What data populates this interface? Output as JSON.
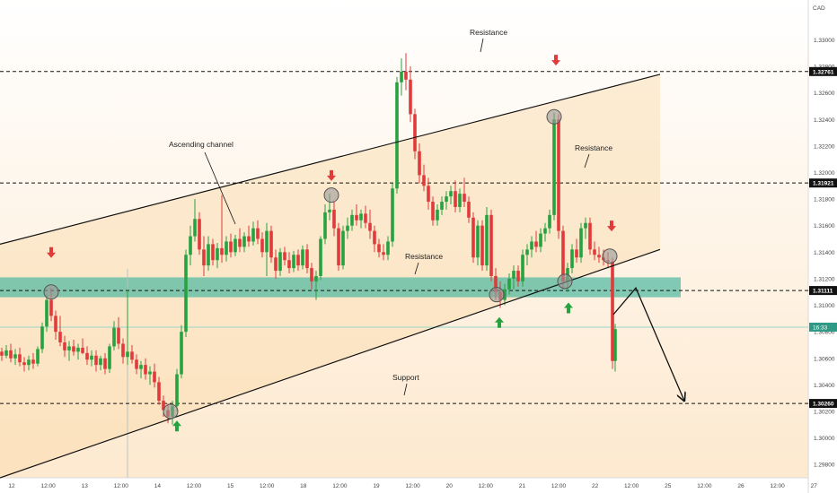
{
  "chart_data": {
    "type": "candlestick",
    "currency": "CAD",
    "x_ticks": [
      "12",
      "12:00",
      "13",
      "12:00",
      "14",
      "12:00",
      "15",
      "12:00",
      "18",
      "12:00",
      "19",
      "12:00",
      "20",
      "12:00",
      "21",
      "12:00",
      "22",
      "12:00",
      "25",
      "12:00",
      "26",
      "12:00",
      "27"
    ],
    "y_ticks": [
      "1.33000",
      "1.32800",
      "1.32600",
      "1.32400",
      "1.32200",
      "1.32000",
      "1.31800",
      "1.31600",
      "1.31400",
      "1.31200",
      "1.31000",
      "1.30800",
      "1.30600",
      "1.30400",
      "1.30200",
      "1.30000",
      "1.29800"
    ],
    "ylim": [
      1.297,
      1.333
    ],
    "levels": [
      {
        "label": "Resistance",
        "price": 1.32761,
        "price_label": "1.32761"
      },
      {
        "label": "Resistance",
        "price": 1.31921,
        "price_label": "1.31921"
      },
      {
        "label": "Resistance",
        "price": 1.31111,
        "price_label": "1.31111"
      },
      {
        "label": "Support",
        "price": 1.3026,
        "price_label": "1.30260"
      }
    ],
    "current_price": {
      "price": 1.30835,
      "label": "16:33"
    },
    "resistance_zone": {
      "low": 1.3106,
      "high": 1.3121
    },
    "channel": {
      "label": "Ascending channel",
      "upper": [
        {
          "x": 0,
          "y": 1.3146
        },
        {
          "x": 735,
          "y": 1.3274
        }
      ],
      "lower": [
        {
          "x": 0,
          "y": 1.297
        },
        {
          "x": 735,
          "y": 1.3142
        }
      ]
    },
    "annotations": [
      "Resistance",
      "Ascending channel",
      "Resistance",
      "Resistance",
      "Support"
    ],
    "down_arrows": [
      {
        "x": 57,
        "y": 1.3137
      },
      {
        "x": 369,
        "y": 1.3195
      },
      {
        "x": 619,
        "y": 1.3282
      },
      {
        "x": 681,
        "y": 1.3157
      }
    ],
    "up_arrows": [
      {
        "x": 197,
        "y": 1.3009
      },
      {
        "x": 556,
        "y": 1.3087
      },
      {
        "x": 633,
        "y": 1.3098
      }
    ],
    "touch_points": [
      {
        "x": 57,
        "y": 1.311
      },
      {
        "x": 190,
        "y": 1.302
      },
      {
        "x": 369,
        "y": 1.3183
      },
      {
        "x": 553,
        "y": 1.3108
      },
      {
        "x": 617,
        "y": 1.3242
      },
      {
        "x": 629,
        "y": 1.3118
      },
      {
        "x": 679,
        "y": 1.3137
      }
    ],
    "projection": [
      {
        "x": 683,
        "y": 1.3093
      },
      {
        "x": 708,
        "y": 1.3113
      },
      {
        "x": 762,
        "y": 1.3028
      }
    ],
    "candles": [
      {
        "x": 2,
        "o": 1.3065,
        "h": 1.3068,
        "l": 1.3058,
        "c": 1.3062
      },
      {
        "x": 7,
        "o": 1.3062,
        "h": 1.307,
        "l": 1.306,
        "c": 1.3066
      },
      {
        "x": 12,
        "o": 1.3066,
        "h": 1.3071,
        "l": 1.3057,
        "c": 1.306
      },
      {
        "x": 17,
        "o": 1.306,
        "h": 1.3067,
        "l": 1.3055,
        "c": 1.3063
      },
      {
        "x": 22,
        "o": 1.3063,
        "h": 1.3068,
        "l": 1.3054,
        "c": 1.3057
      },
      {
        "x": 27,
        "o": 1.3057,
        "h": 1.3061,
        "l": 1.305,
        "c": 1.3055
      },
      {
        "x": 32,
        "o": 1.3055,
        "h": 1.3062,
        "l": 1.3051,
        "c": 1.3059
      },
      {
        "x": 37,
        "o": 1.3059,
        "h": 1.3064,
        "l": 1.3052,
        "c": 1.3056
      },
      {
        "x": 42,
        "o": 1.3056,
        "h": 1.3069,
        "l": 1.3054,
        "c": 1.3067
      },
      {
        "x": 47,
        "o": 1.3067,
        "h": 1.3087,
        "l": 1.3064,
        "c": 1.3084
      },
      {
        "x": 52,
        "o": 1.3084,
        "h": 1.3108,
        "l": 1.308,
        "c": 1.3104
      },
      {
        "x": 57,
        "o": 1.3104,
        "h": 1.3113,
        "l": 1.3088,
        "c": 1.3092
      },
      {
        "x": 62,
        "o": 1.3092,
        "h": 1.3096,
        "l": 1.3074,
        "c": 1.308
      },
      {
        "x": 67,
        "o": 1.308,
        "h": 1.3092,
        "l": 1.3069,
        "c": 1.3072
      },
      {
        "x": 72,
        "o": 1.3072,
        "h": 1.3077,
        "l": 1.3061,
        "c": 1.3066
      },
      {
        "x": 77,
        "o": 1.3066,
        "h": 1.3073,
        "l": 1.3058,
        "c": 1.3069
      },
      {
        "x": 82,
        "o": 1.3069,
        "h": 1.3074,
        "l": 1.3062,
        "c": 1.3065
      },
      {
        "x": 87,
        "o": 1.3065,
        "h": 1.3071,
        "l": 1.3059,
        "c": 1.3068
      },
      {
        "x": 92,
        "o": 1.3068,
        "h": 1.3075,
        "l": 1.3063,
        "c": 1.3064
      },
      {
        "x": 97,
        "o": 1.3064,
        "h": 1.3069,
        "l": 1.3055,
        "c": 1.3059
      },
      {
        "x": 102,
        "o": 1.3059,
        "h": 1.3066,
        "l": 1.3054,
        "c": 1.3062
      },
      {
        "x": 107,
        "o": 1.3062,
        "h": 1.3066,
        "l": 1.305,
        "c": 1.3055
      },
      {
        "x": 112,
        "o": 1.3055,
        "h": 1.3062,
        "l": 1.3051,
        "c": 1.306
      },
      {
        "x": 117,
        "o": 1.306,
        "h": 1.3064,
        "l": 1.3048,
        "c": 1.3052
      },
      {
        "x": 122,
        "o": 1.3052,
        "h": 1.3071,
        "l": 1.3049,
        "c": 1.3069
      },
      {
        "x": 127,
        "o": 1.3069,
        "h": 1.3088,
        "l": 1.3066,
        "c": 1.3083
      },
      {
        "x": 132,
        "o": 1.3083,
        "h": 1.3091,
        "l": 1.3067,
        "c": 1.3071
      },
      {
        "x": 137,
        "o": 1.3071,
        "h": 1.3075,
        "l": 1.3056,
        "c": 1.3061
      },
      {
        "x": 142,
        "o": 1.3061,
        "h": 1.3112,
        "l": 1.3055,
        "c": 1.3065
      },
      {
        "x": 147,
        "o": 1.3065,
        "h": 1.307,
        "l": 1.3056,
        "c": 1.3059
      },
      {
        "x": 152,
        "o": 1.3059,
        "h": 1.3063,
        "l": 1.3048,
        "c": 1.3052
      },
      {
        "x": 157,
        "o": 1.3052,
        "h": 1.3058,
        "l": 1.3045,
        "c": 1.3055
      },
      {
        "x": 162,
        "o": 1.3055,
        "h": 1.306,
        "l": 1.3044,
        "c": 1.3048
      },
      {
        "x": 167,
        "o": 1.3048,
        "h": 1.3054,
        "l": 1.304,
        "c": 1.305
      },
      {
        "x": 172,
        "o": 1.305,
        "h": 1.3056,
        "l": 1.3038,
        "c": 1.3042
      },
      {
        "x": 177,
        "o": 1.3042,
        "h": 1.3046,
        "l": 1.3025,
        "c": 1.3028
      },
      {
        "x": 182,
        "o": 1.3028,
        "h": 1.3032,
        "l": 1.3016,
        "c": 1.3021
      },
      {
        "x": 187,
        "o": 1.3021,
        "h": 1.3026,
        "l": 1.3011,
        "c": 1.3016
      },
      {
        "x": 192,
        "o": 1.3016,
        "h": 1.3028,
        "l": 1.301,
        "c": 1.3024
      },
      {
        "x": 197,
        "o": 1.3024,
        "h": 1.3052,
        "l": 1.302,
        "c": 1.3048
      },
      {
        "x": 202,
        "o": 1.3048,
        "h": 1.3085,
        "l": 1.3045,
        "c": 1.308
      },
      {
        "x": 207,
        "o": 1.308,
        "h": 1.3142,
        "l": 1.3076,
        "c": 1.3138
      },
      {
        "x": 212,
        "o": 1.3138,
        "h": 1.316,
        "l": 1.313,
        "c": 1.3152
      },
      {
        "x": 217,
        "o": 1.3152,
        "h": 1.318,
        "l": 1.3148,
        "c": 1.3165
      },
      {
        "x": 222,
        "o": 1.3165,
        "h": 1.317,
        "l": 1.3138,
        "c": 1.3142
      },
      {
        "x": 227,
        "o": 1.3142,
        "h": 1.3152,
        "l": 1.3122,
        "c": 1.313
      },
      {
        "x": 232,
        "o": 1.313,
        "h": 1.3152,
        "l": 1.3126,
        "c": 1.3146
      },
      {
        "x": 237,
        "o": 1.3146,
        "h": 1.315,
        "l": 1.313,
        "c": 1.3134
      },
      {
        "x": 242,
        "o": 1.3134,
        "h": 1.3147,
        "l": 1.3128,
        "c": 1.3143
      },
      {
        "x": 247,
        "o": 1.3143,
        "h": 1.3183,
        "l": 1.3132,
        "c": 1.3138
      },
      {
        "x": 252,
        "o": 1.3138,
        "h": 1.3152,
        "l": 1.3133,
        "c": 1.3148
      },
      {
        "x": 257,
        "o": 1.3148,
        "h": 1.3154,
        "l": 1.3136,
        "c": 1.314
      },
      {
        "x": 262,
        "o": 1.314,
        "h": 1.3153,
        "l": 1.3137,
        "c": 1.315
      },
      {
        "x": 267,
        "o": 1.315,
        "h": 1.3158,
        "l": 1.314,
        "c": 1.3144
      },
      {
        "x": 272,
        "o": 1.3144,
        "h": 1.3155,
        "l": 1.314,
        "c": 1.3152
      },
      {
        "x": 277,
        "o": 1.3152,
        "h": 1.316,
        "l": 1.3144,
        "c": 1.3148
      },
      {
        "x": 282,
        "o": 1.3148,
        "h": 1.3163,
        "l": 1.3145,
        "c": 1.3158
      },
      {
        "x": 287,
        "o": 1.3158,
        "h": 1.3164,
        "l": 1.3146,
        "c": 1.315
      },
      {
        "x": 292,
        "o": 1.315,
        "h": 1.3155,
        "l": 1.3136,
        "c": 1.314
      },
      {
        "x": 297,
        "o": 1.314,
        "h": 1.3162,
        "l": 1.3122,
        "c": 1.3156
      },
      {
        "x": 302,
        "o": 1.3156,
        "h": 1.316,
        "l": 1.3132,
        "c": 1.3136
      },
      {
        "x": 307,
        "o": 1.3136,
        "h": 1.3142,
        "l": 1.312,
        "c": 1.3126
      },
      {
        "x": 312,
        "o": 1.3126,
        "h": 1.3143,
        "l": 1.3122,
        "c": 1.314
      },
      {
        "x": 317,
        "o": 1.314,
        "h": 1.3144,
        "l": 1.313,
        "c": 1.3134
      },
      {
        "x": 322,
        "o": 1.3134,
        "h": 1.314,
        "l": 1.3124,
        "c": 1.3128
      },
      {
        "x": 327,
        "o": 1.3128,
        "h": 1.3141,
        "l": 1.3125,
        "c": 1.3138
      },
      {
        "x": 332,
        "o": 1.3138,
        "h": 1.3142,
        "l": 1.3126,
        "c": 1.313
      },
      {
        "x": 337,
        "o": 1.313,
        "h": 1.3145,
        "l": 1.3127,
        "c": 1.3142
      },
      {
        "x": 342,
        "o": 1.3142,
        "h": 1.3146,
        "l": 1.3124,
        "c": 1.3128
      },
      {
        "x": 347,
        "o": 1.3128,
        "h": 1.3132,
        "l": 1.3112,
        "c": 1.3118
      },
      {
        "x": 352,
        "o": 1.3118,
        "h": 1.3126,
        "l": 1.3104,
        "c": 1.3122
      },
      {
        "x": 357,
        "o": 1.3122,
        "h": 1.3152,
        "l": 1.3119,
        "c": 1.315
      },
      {
        "x": 362,
        "o": 1.315,
        "h": 1.3176,
        "l": 1.3146,
        "c": 1.317
      },
      {
        "x": 367,
        "o": 1.317,
        "h": 1.3184,
        "l": 1.3164,
        "c": 1.3172
      },
      {
        "x": 372,
        "o": 1.3172,
        "h": 1.3178,
        "l": 1.3152,
        "c": 1.3158
      },
      {
        "x": 377,
        "o": 1.3158,
        "h": 1.3162,
        "l": 1.3126,
        "c": 1.313
      },
      {
        "x": 382,
        "o": 1.313,
        "h": 1.316,
        "l": 1.3127,
        "c": 1.3156
      },
      {
        "x": 387,
        "o": 1.3156,
        "h": 1.3166,
        "l": 1.315,
        "c": 1.316
      },
      {
        "x": 392,
        "o": 1.316,
        "h": 1.3172,
        "l": 1.3156,
        "c": 1.3168
      },
      {
        "x": 397,
        "o": 1.3168,
        "h": 1.3176,
        "l": 1.316,
        "c": 1.3164
      },
      {
        "x": 402,
        "o": 1.3164,
        "h": 1.3172,
        "l": 1.3158,
        "c": 1.3169
      },
      {
        "x": 407,
        "o": 1.3169,
        "h": 1.3175,
        "l": 1.3158,
        "c": 1.3162
      },
      {
        "x": 412,
        "o": 1.3162,
        "h": 1.3172,
        "l": 1.315,
        "c": 1.3156
      },
      {
        "x": 417,
        "o": 1.3156,
        "h": 1.316,
        "l": 1.314,
        "c": 1.3146
      },
      {
        "x": 422,
        "o": 1.3146,
        "h": 1.315,
        "l": 1.3136,
        "c": 1.314
      },
      {
        "x": 427,
        "o": 1.314,
        "h": 1.3146,
        "l": 1.3134,
        "c": 1.3138
      },
      {
        "x": 432,
        "o": 1.3138,
        "h": 1.3152,
        "l": 1.3134,
        "c": 1.3148
      },
      {
        "x": 437,
        "o": 1.3148,
        "h": 1.3192,
        "l": 1.3144,
        "c": 1.3188
      },
      {
        "x": 442,
        "o": 1.3188,
        "h": 1.3272,
        "l": 1.3184,
        "c": 1.3268
      },
      {
        "x": 447,
        "o": 1.3268,
        "h": 1.3286,
        "l": 1.3258,
        "c": 1.3276
      },
      {
        "x": 452,
        "o": 1.3276,
        "h": 1.329,
        "l": 1.3262,
        "c": 1.327
      },
      {
        "x": 457,
        "o": 1.327,
        "h": 1.328,
        "l": 1.3238,
        "c": 1.3244
      },
      {
        "x": 462,
        "o": 1.3244,
        "h": 1.3248,
        "l": 1.321,
        "c": 1.3216
      },
      {
        "x": 467,
        "o": 1.3216,
        "h": 1.3222,
        "l": 1.3192,
        "c": 1.3198
      },
      {
        "x": 472,
        "o": 1.3198,
        "h": 1.3206,
        "l": 1.3186,
        "c": 1.319
      },
      {
        "x": 477,
        "o": 1.319,
        "h": 1.3196,
        "l": 1.3172,
        "c": 1.3178
      },
      {
        "x": 482,
        "o": 1.3178,
        "h": 1.3182,
        "l": 1.316,
        "c": 1.3164
      },
      {
        "x": 487,
        "o": 1.3164,
        "h": 1.3176,
        "l": 1.316,
        "c": 1.3172
      },
      {
        "x": 492,
        "o": 1.3172,
        "h": 1.3182,
        "l": 1.3168,
        "c": 1.3178
      },
      {
        "x": 497,
        "o": 1.3178,
        "h": 1.3186,
        "l": 1.3172,
        "c": 1.3182
      },
      {
        "x": 502,
        "o": 1.3182,
        "h": 1.319,
        "l": 1.3176,
        "c": 1.3186
      },
      {
        "x": 507,
        "o": 1.3186,
        "h": 1.3194,
        "l": 1.317,
        "c": 1.3174
      },
      {
        "x": 512,
        "o": 1.3174,
        "h": 1.3188,
        "l": 1.317,
        "c": 1.3184
      },
      {
        "x": 517,
        "o": 1.3184,
        "h": 1.3196,
        "l": 1.3174,
        "c": 1.3178
      },
      {
        "x": 522,
        "o": 1.3178,
        "h": 1.3182,
        "l": 1.3162,
        "c": 1.3166
      },
      {
        "x": 527,
        "o": 1.3166,
        "h": 1.317,
        "l": 1.3132,
        "c": 1.3136
      },
      {
        "x": 532,
        "o": 1.3136,
        "h": 1.3164,
        "l": 1.313,
        "c": 1.316
      },
      {
        "x": 537,
        "o": 1.316,
        "h": 1.3164,
        "l": 1.3126,
        "c": 1.313
      },
      {
        "x": 542,
        "o": 1.313,
        "h": 1.3174,
        "l": 1.3126,
        "c": 1.3168
      },
      {
        "x": 547,
        "o": 1.3168,
        "h": 1.3172,
        "l": 1.3118,
        "c": 1.3122
      },
      {
        "x": 552,
        "o": 1.3122,
        "h": 1.3128,
        "l": 1.3104,
        "c": 1.311
      },
      {
        "x": 557,
        "o": 1.311,
        "h": 1.3118,
        "l": 1.3098,
        "c": 1.3104
      },
      {
        "x": 562,
        "o": 1.3104,
        "h": 1.3116,
        "l": 1.31,
        "c": 1.3112
      },
      {
        "x": 567,
        "o": 1.3112,
        "h": 1.3124,
        "l": 1.3108,
        "c": 1.312
      },
      {
        "x": 572,
        "o": 1.312,
        "h": 1.313,
        "l": 1.3112,
        "c": 1.3126
      },
      {
        "x": 577,
        "o": 1.3126,
        "h": 1.313,
        "l": 1.3114,
        "c": 1.3118
      },
      {
        "x": 582,
        "o": 1.3118,
        "h": 1.3142,
        "l": 1.3114,
        "c": 1.3138
      },
      {
        "x": 587,
        "o": 1.3138,
        "h": 1.3146,
        "l": 1.313,
        "c": 1.3142
      },
      {
        "x": 592,
        "o": 1.3142,
        "h": 1.3152,
        "l": 1.3136,
        "c": 1.3148
      },
      {
        "x": 597,
        "o": 1.3148,
        "h": 1.3156,
        "l": 1.314,
        "c": 1.3144
      },
      {
        "x": 602,
        "o": 1.3144,
        "h": 1.3158,
        "l": 1.314,
        "c": 1.3154
      },
      {
        "x": 607,
        "o": 1.3154,
        "h": 1.3162,
        "l": 1.3148,
        "c": 1.3158
      },
      {
        "x": 612,
        "o": 1.3158,
        "h": 1.3172,
        "l": 1.3154,
        "c": 1.3168
      },
      {
        "x": 617,
        "o": 1.3168,
        "h": 1.3245,
        "l": 1.3164,
        "c": 1.324
      },
      {
        "x": 622,
        "o": 1.324,
        "h": 1.3244,
        "l": 1.315,
        "c": 1.3156
      },
      {
        "x": 627,
        "o": 1.3156,
        "h": 1.316,
        "l": 1.3112,
        "c": 1.3118
      },
      {
        "x": 632,
        "o": 1.3118,
        "h": 1.3132,
        "l": 1.311,
        "c": 1.3128
      },
      {
        "x": 637,
        "o": 1.3128,
        "h": 1.3146,
        "l": 1.3124,
        "c": 1.3142
      },
      {
        "x": 642,
        "o": 1.3142,
        "h": 1.315,
        "l": 1.3132,
        "c": 1.3136
      },
      {
        "x": 647,
        "o": 1.3136,
        "h": 1.3162,
        "l": 1.3132,
        "c": 1.3158
      },
      {
        "x": 652,
        "o": 1.3158,
        "h": 1.3166,
        "l": 1.315,
        "c": 1.3162
      },
      {
        "x": 657,
        "o": 1.3162,
        "h": 1.3166,
        "l": 1.3138,
        "c": 1.3142
      },
      {
        "x": 662,
        "o": 1.3142,
        "h": 1.3148,
        "l": 1.3134,
        "c": 1.3138
      },
      {
        "x": 667,
        "o": 1.3138,
        "h": 1.3144,
        "l": 1.3132,
        "c": 1.3136
      },
      {
        "x": 672,
        "o": 1.3136,
        "h": 1.3142,
        "l": 1.313,
        "c": 1.3134
      },
      {
        "x": 677,
        "o": 1.3134,
        "h": 1.314,
        "l": 1.3128,
        "c": 1.3133
      },
      {
        "x": 682,
        "o": 1.3133,
        "h": 1.3136,
        "l": 1.3052,
        "c": 1.3058
      },
      {
        "x": 685,
        "o": 1.3058,
        "h": 1.3086,
        "l": 1.305,
        "c": 1.3082
      }
    ]
  }
}
